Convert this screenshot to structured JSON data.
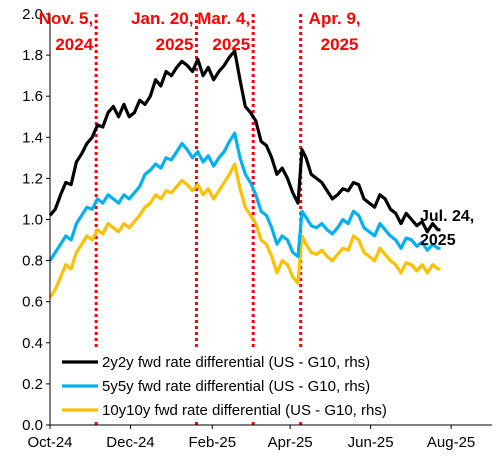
{
  "chart_data": {
    "type": "line",
    "title": "",
    "xlabel": "",
    "ylabel": "",
    "ylim": [
      0.0,
      2.0
    ],
    "yticks": [
      "0.0",
      "0.2",
      "0.4",
      "0.6",
      "0.8",
      "1.0",
      "1.2",
      "1.4",
      "1.6",
      "1.8",
      "2.0"
    ],
    "xlim": [
      "2024-10-01",
      "2025-09-01"
    ],
    "xticks": [
      {
        "date": "2024-10-01",
        "label": "Oct-24"
      },
      {
        "date": "2024-12-01",
        "label": "Dec-24"
      },
      {
        "date": "2025-02-01",
        "label": "Feb-25"
      },
      {
        "date": "2025-04-01",
        "label": "Apr-25"
      },
      {
        "date": "2025-06-01",
        "label": "Jun-25"
      },
      {
        "date": "2025-08-01",
        "label": "Aug-25"
      }
    ],
    "grid": false,
    "legend_position": "bottom-left",
    "events": [
      {
        "date": "2024-11-05",
        "line1": "Nov. 5,",
        "line2": "2024"
      },
      {
        "date": "2025-01-20",
        "line1": "Jan. 20,",
        "line2": "2025"
      },
      {
        "date": "2025-03-04",
        "line1": "Mar. 4,",
        "line2": "2025"
      },
      {
        "date": "2025-04-09",
        "line1": "Apr. 9,",
        "line2": "2025"
      }
    ],
    "event_color": "#ff0000",
    "end_annotation": {
      "line1": "Jul. 24,",
      "line2": "2025",
      "date": "2025-07-24"
    },
    "series": [
      {
        "name": "2y2y fwd rate differential (US - G10, rhs)",
        "color": "#000000",
        "points": [
          [
            "2024-10-01",
            1.02
          ],
          [
            "2024-10-05",
            1.05
          ],
          [
            "2024-10-09",
            1.12
          ],
          [
            "2024-10-13",
            1.18
          ],
          [
            "2024-10-17",
            1.17
          ],
          [
            "2024-10-21",
            1.28
          ],
          [
            "2024-10-25",
            1.32
          ],
          [
            "2024-10-29",
            1.37
          ],
          [
            "2024-11-02",
            1.4
          ],
          [
            "2024-11-06",
            1.46
          ],
          [
            "2024-11-10",
            1.45
          ],
          [
            "2024-11-14",
            1.52
          ],
          [
            "2024-11-18",
            1.55
          ],
          [
            "2024-11-22",
            1.5
          ],
          [
            "2024-11-26",
            1.56
          ],
          [
            "2024-11-30",
            1.5
          ],
          [
            "2024-12-04",
            1.52
          ],
          [
            "2024-12-08",
            1.58
          ],
          [
            "2024-12-12",
            1.56
          ],
          [
            "2024-12-16",
            1.6
          ],
          [
            "2024-12-20",
            1.68
          ],
          [
            "2024-12-24",
            1.65
          ],
          [
            "2024-12-28",
            1.72
          ],
          [
            "2025-01-01",
            1.7
          ],
          [
            "2025-01-05",
            1.74
          ],
          [
            "2025-01-09",
            1.77
          ],
          [
            "2025-01-13",
            1.75
          ],
          [
            "2025-01-17",
            1.72
          ],
          [
            "2025-01-21",
            1.78
          ],
          [
            "2025-01-25",
            1.7
          ],
          [
            "2025-01-29",
            1.74
          ],
          [
            "2025-02-02",
            1.68
          ],
          [
            "2025-02-06",
            1.72
          ],
          [
            "2025-02-10",
            1.75
          ],
          [
            "2025-02-14",
            1.79
          ],
          [
            "2025-02-18",
            1.82
          ],
          [
            "2025-02-22",
            1.68
          ],
          [
            "2025-02-26",
            1.55
          ],
          [
            "2025-03-02",
            1.52
          ],
          [
            "2025-03-06",
            1.48
          ],
          [
            "2025-03-10",
            1.38
          ],
          [
            "2025-03-14",
            1.36
          ],
          [
            "2025-03-18",
            1.3
          ],
          [
            "2025-03-22",
            1.22
          ],
          [
            "2025-03-26",
            1.25
          ],
          [
            "2025-03-30",
            1.2
          ],
          [
            "2025-04-03",
            1.13
          ],
          [
            "2025-04-07",
            1.08
          ],
          [
            "2025-04-10",
            1.34
          ],
          [
            "2025-04-13",
            1.3
          ],
          [
            "2025-04-17",
            1.22
          ],
          [
            "2025-04-21",
            1.2
          ],
          [
            "2025-04-25",
            1.18
          ],
          [
            "2025-04-29",
            1.14
          ],
          [
            "2025-05-03",
            1.1
          ],
          [
            "2025-05-07",
            1.12
          ],
          [
            "2025-05-11",
            1.15
          ],
          [
            "2025-05-15",
            1.14
          ],
          [
            "2025-05-19",
            1.18
          ],
          [
            "2025-05-23",
            1.17
          ],
          [
            "2025-05-27",
            1.1
          ],
          [
            "2025-05-31",
            1.08
          ],
          [
            "2025-06-04",
            1.06
          ],
          [
            "2025-06-08",
            1.12
          ],
          [
            "2025-06-12",
            1.1
          ],
          [
            "2025-06-16",
            1.05
          ],
          [
            "2025-06-20",
            1.03
          ],
          [
            "2025-06-24",
            0.98
          ],
          [
            "2025-06-28",
            1.03
          ],
          [
            "2025-07-02",
            1.0
          ],
          [
            "2025-07-06",
            0.97
          ],
          [
            "2025-07-10",
            0.99
          ],
          [
            "2025-07-14",
            0.94
          ],
          [
            "2025-07-18",
            0.98
          ],
          [
            "2025-07-22",
            0.95
          ],
          [
            "2025-07-24",
            0.95
          ]
        ]
      },
      {
        "name": "5y5y fwd rate differential (US - G10, rhs)",
        "color": "#00b0f0",
        "points": [
          [
            "2024-10-01",
            0.8
          ],
          [
            "2024-10-05",
            0.84
          ],
          [
            "2024-10-09",
            0.88
          ],
          [
            "2024-10-13",
            0.92
          ],
          [
            "2024-10-17",
            0.9
          ],
          [
            "2024-10-21",
            0.98
          ],
          [
            "2024-10-25",
            1.02
          ],
          [
            "2024-10-29",
            1.06
          ],
          [
            "2024-11-02",
            1.05
          ],
          [
            "2024-11-06",
            1.1
          ],
          [
            "2024-11-10",
            1.08
          ],
          [
            "2024-11-14",
            1.12
          ],
          [
            "2024-11-18",
            1.1
          ],
          [
            "2024-11-22",
            1.08
          ],
          [
            "2024-11-26",
            1.12
          ],
          [
            "2024-11-30",
            1.1
          ],
          [
            "2024-12-04",
            1.13
          ],
          [
            "2024-12-08",
            1.16
          ],
          [
            "2024-12-12",
            1.22
          ],
          [
            "2024-12-16",
            1.24
          ],
          [
            "2024-12-20",
            1.27
          ],
          [
            "2024-12-24",
            1.25
          ],
          [
            "2024-12-28",
            1.3
          ],
          [
            "2025-01-01",
            1.29
          ],
          [
            "2025-01-05",
            1.33
          ],
          [
            "2025-01-09",
            1.37
          ],
          [
            "2025-01-13",
            1.34
          ],
          [
            "2025-01-17",
            1.3
          ],
          [
            "2025-01-21",
            1.33
          ],
          [
            "2025-01-25",
            1.28
          ],
          [
            "2025-01-29",
            1.31
          ],
          [
            "2025-02-02",
            1.26
          ],
          [
            "2025-02-06",
            1.3
          ],
          [
            "2025-02-10",
            1.33
          ],
          [
            "2025-02-14",
            1.38
          ],
          [
            "2025-02-18",
            1.42
          ],
          [
            "2025-02-22",
            1.3
          ],
          [
            "2025-02-26",
            1.22
          ],
          [
            "2025-03-02",
            1.18
          ],
          [
            "2025-03-06",
            1.12
          ],
          [
            "2025-03-10",
            1.04
          ],
          [
            "2025-03-14",
            1.02
          ],
          [
            "2025-03-18",
            0.96
          ],
          [
            "2025-03-22",
            0.88
          ],
          [
            "2025-03-26",
            0.92
          ],
          [
            "2025-03-30",
            0.9
          ],
          [
            "2025-04-03",
            0.84
          ],
          [
            "2025-04-07",
            0.82
          ],
          [
            "2025-04-10",
            1.04
          ],
          [
            "2025-04-13",
            1.01
          ],
          [
            "2025-04-17",
            0.97
          ],
          [
            "2025-04-21",
            0.96
          ],
          [
            "2025-04-25",
            0.98
          ],
          [
            "2025-04-29",
            0.95
          ],
          [
            "2025-05-03",
            0.93
          ],
          [
            "2025-05-07",
            0.96
          ],
          [
            "2025-05-11",
            1.0
          ],
          [
            "2025-05-15",
            0.98
          ],
          [
            "2025-05-19",
            1.04
          ],
          [
            "2025-05-23",
            1.02
          ],
          [
            "2025-05-27",
            0.96
          ],
          [
            "2025-05-31",
            0.94
          ],
          [
            "2025-06-04",
            0.92
          ],
          [
            "2025-06-08",
            0.98
          ],
          [
            "2025-06-12",
            0.95
          ],
          [
            "2025-06-16",
            0.92
          ],
          [
            "2025-06-20",
            0.9
          ],
          [
            "2025-06-24",
            0.86
          ],
          [
            "2025-06-28",
            0.91
          ],
          [
            "2025-07-02",
            0.9
          ],
          [
            "2025-07-06",
            0.87
          ],
          [
            "2025-07-10",
            0.89
          ],
          [
            "2025-07-14",
            0.85
          ],
          [
            "2025-07-18",
            0.88
          ],
          [
            "2025-07-22",
            0.86
          ],
          [
            "2025-07-24",
            0.86
          ]
        ]
      },
      {
        "name": "10y10y fwd rate differential (US - G10, rhs)",
        "color": "#ffc000",
        "points": [
          [
            "2024-10-01",
            0.62
          ],
          [
            "2024-10-05",
            0.66
          ],
          [
            "2024-10-09",
            0.72
          ],
          [
            "2024-10-13",
            0.78
          ],
          [
            "2024-10-17",
            0.76
          ],
          [
            "2024-10-21",
            0.84
          ],
          [
            "2024-10-25",
            0.88
          ],
          [
            "2024-10-29",
            0.92
          ],
          [
            "2024-11-02",
            0.9
          ],
          [
            "2024-11-06",
            0.95
          ],
          [
            "2024-11-10",
            0.93
          ],
          [
            "2024-11-14",
            0.98
          ],
          [
            "2024-11-18",
            0.96
          ],
          [
            "2024-11-22",
            0.94
          ],
          [
            "2024-11-26",
            0.98
          ],
          [
            "2024-11-30",
            0.96
          ],
          [
            "2024-12-04",
            0.99
          ],
          [
            "2024-12-08",
            1.02
          ],
          [
            "2024-12-12",
            1.06
          ],
          [
            "2024-12-16",
            1.08
          ],
          [
            "2024-12-20",
            1.12
          ],
          [
            "2024-12-24",
            1.1
          ],
          [
            "2024-12-28",
            1.14
          ],
          [
            "2025-01-01",
            1.13
          ],
          [
            "2025-01-05",
            1.16
          ],
          [
            "2025-01-09",
            1.19
          ],
          [
            "2025-01-13",
            1.17
          ],
          [
            "2025-01-17",
            1.14
          ],
          [
            "2025-01-21",
            1.17
          ],
          [
            "2025-01-25",
            1.12
          ],
          [
            "2025-01-29",
            1.15
          ],
          [
            "2025-02-02",
            1.1
          ],
          [
            "2025-02-06",
            1.14
          ],
          [
            "2025-02-10",
            1.18
          ],
          [
            "2025-02-14",
            1.22
          ],
          [
            "2025-02-18",
            1.27
          ],
          [
            "2025-02-22",
            1.15
          ],
          [
            "2025-02-26",
            1.06
          ],
          [
            "2025-03-02",
            1.02
          ],
          [
            "2025-03-06",
            0.98
          ],
          [
            "2025-03-10",
            0.9
          ],
          [
            "2025-03-14",
            0.88
          ],
          [
            "2025-03-18",
            0.82
          ],
          [
            "2025-03-22",
            0.74
          ],
          [
            "2025-03-26",
            0.8
          ],
          [
            "2025-03-30",
            0.78
          ],
          [
            "2025-04-03",
            0.72
          ],
          [
            "2025-04-07",
            0.69
          ],
          [
            "2025-04-10",
            0.92
          ],
          [
            "2025-04-13",
            0.88
          ],
          [
            "2025-04-17",
            0.84
          ],
          [
            "2025-04-21",
            0.83
          ],
          [
            "2025-04-25",
            0.85
          ],
          [
            "2025-04-29",
            0.82
          ],
          [
            "2025-05-03",
            0.8
          ],
          [
            "2025-05-07",
            0.83
          ],
          [
            "2025-05-11",
            0.86
          ],
          [
            "2025-05-15",
            0.85
          ],
          [
            "2025-05-19",
            0.92
          ],
          [
            "2025-05-23",
            0.9
          ],
          [
            "2025-05-27",
            0.84
          ],
          [
            "2025-05-31",
            0.82
          ],
          [
            "2025-06-04",
            0.8
          ],
          [
            "2025-06-08",
            0.86
          ],
          [
            "2025-06-12",
            0.83
          ],
          [
            "2025-06-16",
            0.8
          ],
          [
            "2025-06-20",
            0.78
          ],
          [
            "2025-06-24",
            0.74
          ],
          [
            "2025-06-28",
            0.79
          ],
          [
            "2025-07-02",
            0.78
          ],
          [
            "2025-07-06",
            0.75
          ],
          [
            "2025-07-10",
            0.78
          ],
          [
            "2025-07-14",
            0.74
          ],
          [
            "2025-07-18",
            0.78
          ],
          [
            "2025-07-22",
            0.76
          ],
          [
            "2025-07-24",
            0.76
          ]
        ]
      }
    ]
  }
}
